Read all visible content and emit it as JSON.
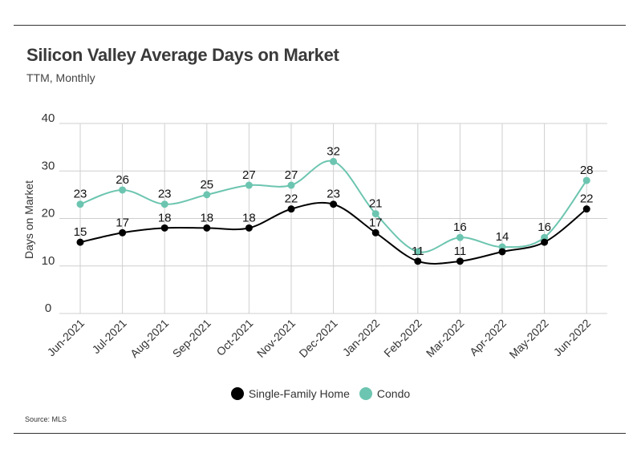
{
  "header": {
    "title": "Silicon Valley Average Days on Market",
    "subtitle": "TTM, Monthly"
  },
  "footer": {
    "source": "Source:  MLS"
  },
  "chart_data": {
    "type": "line",
    "title": "Silicon Valley Average Days on Market",
    "subtitle": "TTM, Monthly",
    "xlabel": "",
    "ylabel": "Days on Market",
    "ylim": [
      0,
      40
    ],
    "yticks": [
      0,
      10,
      20,
      30,
      40
    ],
    "grid": true,
    "legend_position": "bottom",
    "categories": [
      "Jun-2021",
      "Jul-2021",
      "Aug-2021",
      "Sep-2021",
      "Oct-2021",
      "Nov-2021",
      "Dec-2021",
      "Jan-2022",
      "Feb-2022",
      "Mar-2022",
      "Apr-2022",
      "May-2022",
      "Jun-2022"
    ],
    "series": [
      {
        "name": "Single-Family Home",
        "color": "#000000",
        "values": [
          15,
          17,
          18,
          18,
          18,
          22,
          23,
          17,
          11,
          11,
          13,
          15,
          22
        ],
        "labels": [
          "15",
          "17",
          "18",
          "18",
          "18",
          "22",
          "23",
          "17",
          "11",
          "11",
          "",
          "",
          "22"
        ]
      },
      {
        "name": "Condo",
        "color": "#6cc5b0",
        "values": [
          23,
          26,
          23,
          25,
          27,
          27,
          32,
          21,
          13,
          16,
          14,
          16,
          28
        ],
        "labels": [
          "23",
          "26",
          "23",
          "25",
          "27",
          "27",
          "32",
          "21",
          "",
          "16",
          "14",
          "16",
          "28"
        ]
      }
    ]
  }
}
